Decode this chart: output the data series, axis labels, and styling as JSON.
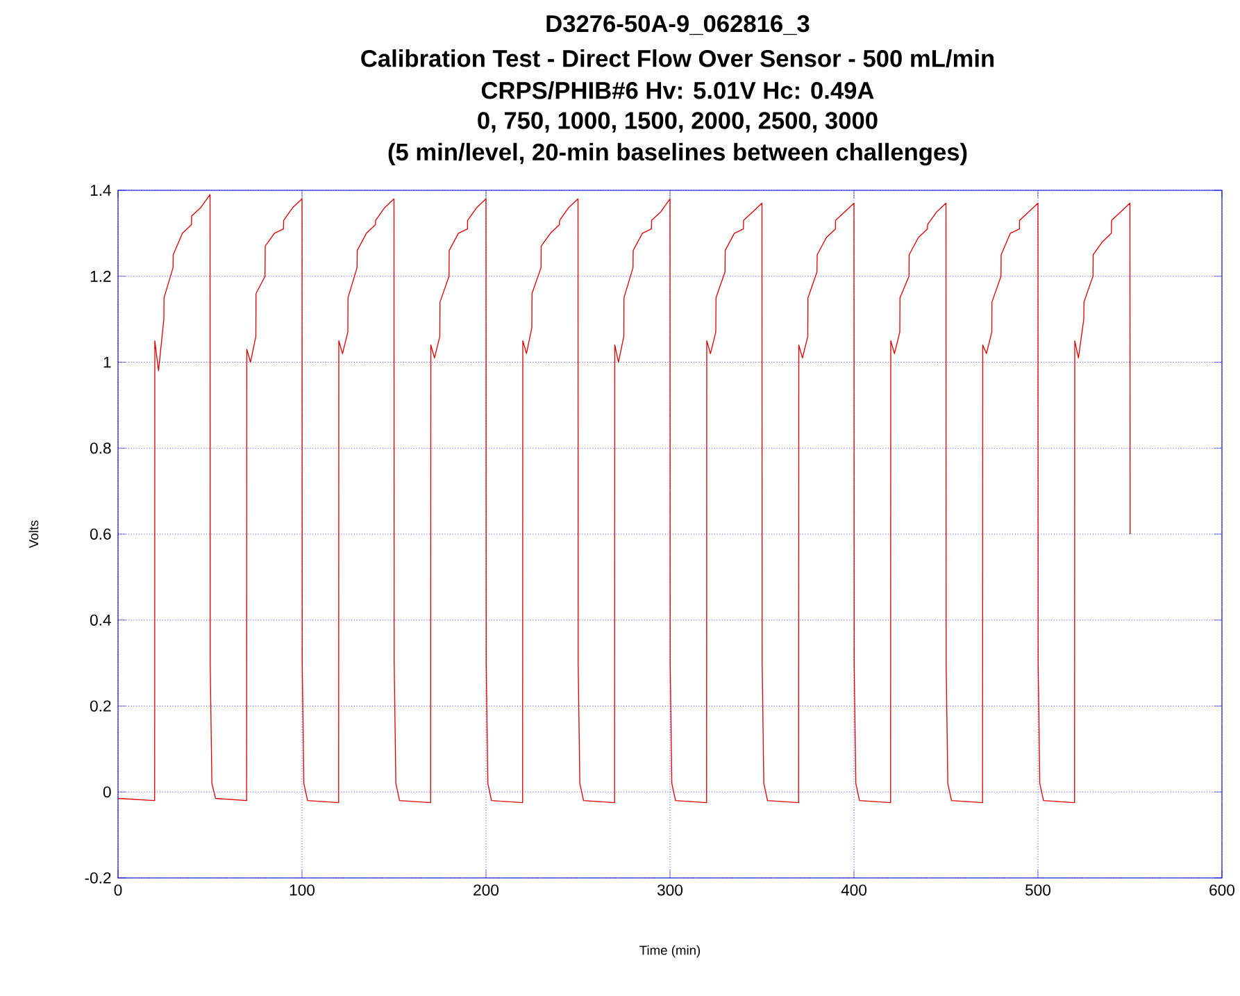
{
  "chart_data": {
    "type": "line",
    "title": "D3276-50A-9_062816_3",
    "subtitle": "Calibration Test - Direct Flow Over Sensor - 500 mL/min",
    "annotations": [
      "CRPS/PHIB#6 Hv: 5.01V Hc: 0.49A",
      "0, 750, 1000, 1500, 2000, 2500, 3000",
      "(5 min/level, 20-min baselines between challenges)"
    ],
    "xlabel": "Time (min)",
    "ylabel": "Volts",
    "xlim": [
      0,
      600
    ],
    "ylim": [
      -0.2,
      1.4
    ],
    "xticks": [
      0,
      100,
      200,
      300,
      400,
      500,
      600
    ],
    "yticks": [
      -0.2,
      0,
      0.2,
      0.4,
      0.6,
      0.8,
      1,
      1.2,
      1.4
    ],
    "grid": true,
    "series": [
      {
        "color": "#e00000",
        "x": [
          0,
          19.9,
          20,
          22,
          24.9,
          25,
          29.9,
          30,
          35,
          39.9,
          40,
          45,
          50,
          50.1,
          51,
          53,
          69.9,
          70,
          72,
          74.9,
          75,
          79.9,
          80,
          85,
          89.9,
          90,
          95,
          100,
          100.1,
          101,
          103,
          119.9,
          120,
          122,
          124.9,
          125,
          129.9,
          130,
          135,
          139.9,
          140,
          145,
          150,
          150.1,
          151,
          153,
          169.9,
          170,
          172,
          174.9,
          175,
          179.9,
          180,
          185,
          189.9,
          190,
          195,
          200,
          200.1,
          201,
          203,
          219.9,
          220,
          222,
          224.9,
          225,
          229.9,
          230,
          235,
          239.9,
          240,
          245,
          250,
          250.1,
          251,
          253,
          269.9,
          270,
          272,
          274.9,
          275,
          279.9,
          280,
          285,
          289.9,
          290,
          295,
          300,
          300.1,
          301,
          303,
          319.9,
          320,
          322,
          324.9,
          325,
          329.9,
          330,
          335,
          339.9,
          340,
          345,
          350,
          350.1,
          351,
          353,
          369.9,
          370,
          372,
          374.9,
          375,
          379.9,
          380,
          385,
          389.9,
          390,
          395,
          400,
          400.1,
          401,
          403,
          419.9,
          420,
          422,
          424.9,
          425,
          429.9,
          430,
          435,
          439.9,
          440,
          445,
          450,
          450.1,
          451,
          453,
          469.9,
          470,
          472,
          474.9,
          475,
          479.9,
          480,
          485,
          489.9,
          490,
          495,
          500,
          500.1,
          501,
          503,
          519.9,
          520,
          522,
          524.9,
          525,
          529.9,
          530,
          535,
          539.9,
          540,
          545,
          550,
          550.1
        ],
        "values": [
          -0.015,
          -0.02,
          1.05,
          0.98,
          1.1,
          1.15,
          1.22,
          1.25,
          1.3,
          1.32,
          1.34,
          1.36,
          1.39,
          0.3,
          0.02,
          -0.015,
          -0.02,
          1.03,
          1.0,
          1.06,
          1.16,
          1.2,
          1.27,
          1.3,
          1.31,
          1.33,
          1.36,
          1.38,
          0.3,
          0.02,
          -0.02,
          -0.025,
          1.05,
          1.02,
          1.07,
          1.15,
          1.22,
          1.26,
          1.3,
          1.32,
          1.33,
          1.36,
          1.38,
          0.3,
          0.02,
          -0.02,
          -0.025,
          1.04,
          1.01,
          1.06,
          1.14,
          1.2,
          1.26,
          1.3,
          1.31,
          1.33,
          1.36,
          1.38,
          0.3,
          0.02,
          -0.02,
          -0.025,
          1.05,
          1.02,
          1.08,
          1.16,
          1.22,
          1.27,
          1.3,
          1.32,
          1.33,
          1.36,
          1.38,
          0.3,
          0.02,
          -0.02,
          -0.025,
          1.04,
          1.0,
          1.06,
          1.15,
          1.22,
          1.26,
          1.3,
          1.31,
          1.33,
          1.35,
          1.38,
          0.3,
          0.02,
          -0.02,
          -0.025,
          1.05,
          1.02,
          1.07,
          1.15,
          1.21,
          1.26,
          1.3,
          1.31,
          1.33,
          1.35,
          1.37,
          0.3,
          0.02,
          -0.02,
          -0.025,
          1.04,
          1.01,
          1.06,
          1.15,
          1.21,
          1.25,
          1.29,
          1.31,
          1.33,
          1.35,
          1.37,
          0.3,
          0.02,
          -0.02,
          -0.025,
          1.05,
          1.02,
          1.07,
          1.15,
          1.2,
          1.25,
          1.29,
          1.31,
          1.32,
          1.35,
          1.37,
          0.3,
          0.02,
          -0.02,
          -0.025,
          1.04,
          1.02,
          1.07,
          1.14,
          1.2,
          1.25,
          1.3,
          1.31,
          1.33,
          1.35,
          1.37,
          0.3,
          0.02,
          -0.02,
          -0.025,
          1.05,
          1.01,
          1.1,
          1.14,
          1.2,
          1.25,
          1.28,
          1.3,
          1.33,
          1.35,
          1.37,
          0.6
        ]
      }
    ]
  }
}
